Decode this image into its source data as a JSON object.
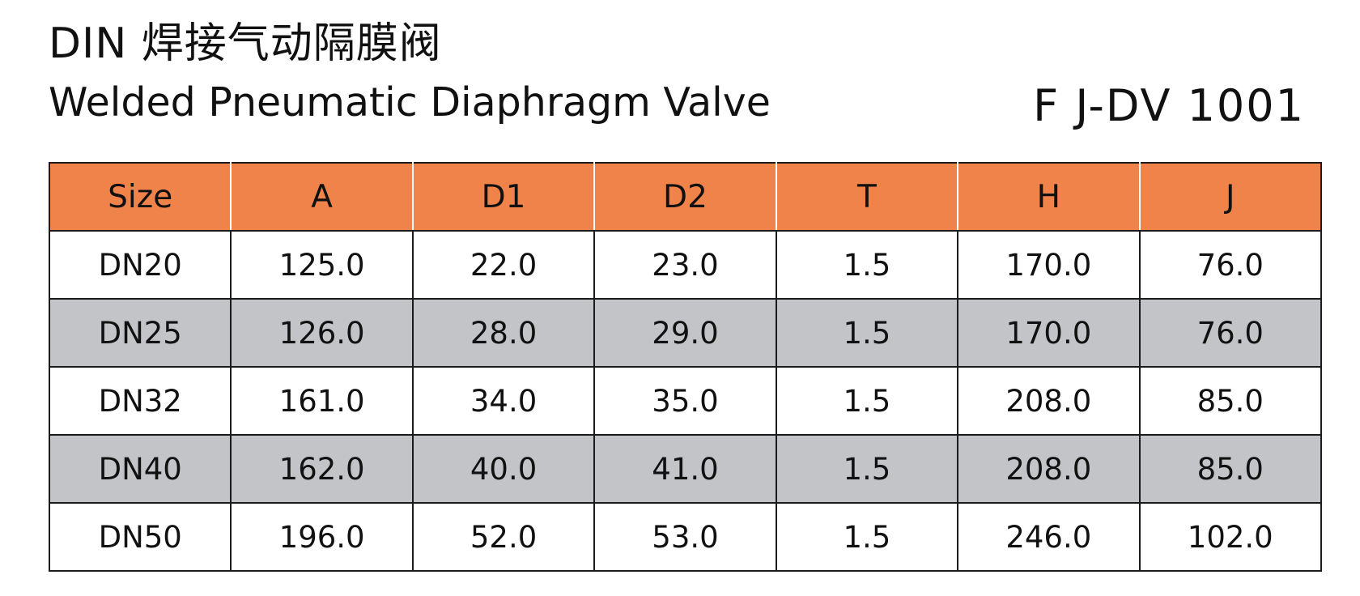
{
  "header": {
    "title_cn": "DIN 焊接气动隔膜阀",
    "title_en": "Welded Pneumatic Diaphragm Valve",
    "model_code": "F J-DV 1001"
  },
  "colors": {
    "header_bg": "#f0834a",
    "row_alt_bg": "#c3c4c7",
    "border": "#1b1b1b"
  },
  "table": {
    "columns": [
      "Size",
      "A",
      "D1",
      "D2",
      "T",
      "H",
      "J"
    ],
    "rows": [
      [
        "DN20",
        "125.0",
        "22.0",
        "23.0",
        "1.5",
        "170.0",
        "76.0"
      ],
      [
        "DN25",
        "126.0",
        "28.0",
        "29.0",
        "1.5",
        "170.0",
        "76.0"
      ],
      [
        "DN32",
        "161.0",
        "34.0",
        "35.0",
        "1.5",
        "208.0",
        "85.0"
      ],
      [
        "DN40",
        "162.0",
        "40.0",
        "41.0",
        "1.5",
        "208.0",
        "85.0"
      ],
      [
        "DN50",
        "196.0",
        "52.0",
        "53.0",
        "1.5",
        "246.0",
        "102.0"
      ]
    ]
  }
}
